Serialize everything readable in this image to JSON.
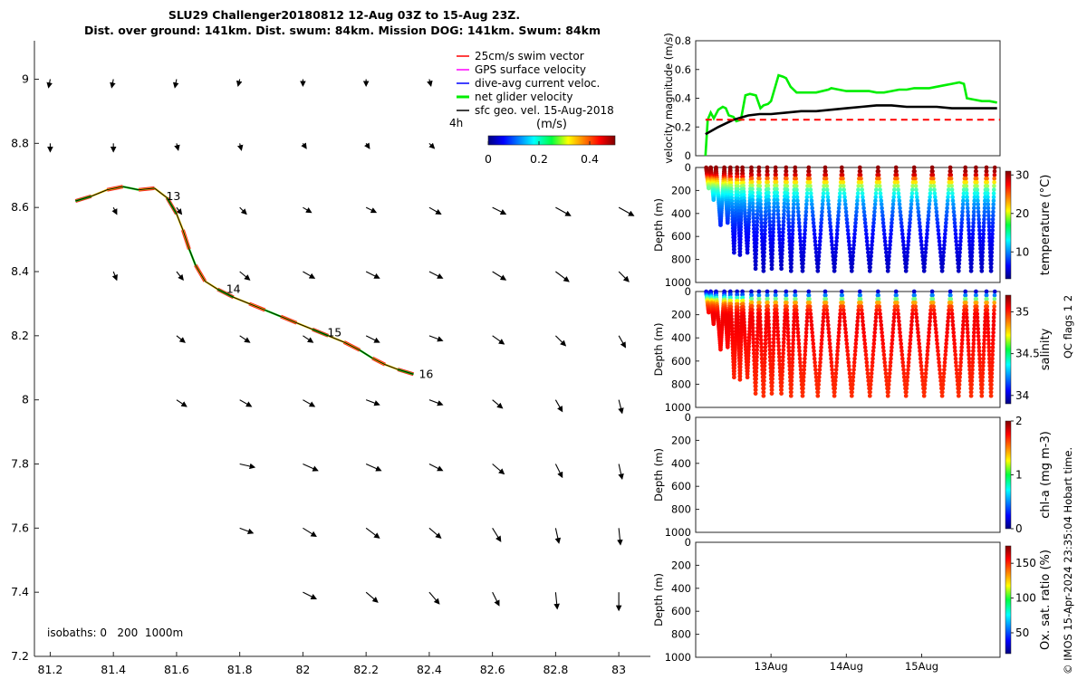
{
  "chart_data": [
    {
      "type": "map",
      "title_line1": "SLU29 Challenger20180812 12-Aug 03Z to 15-Aug 23Z.",
      "title_line2": "Dist. over ground: 141km. Dist. swum: 84km. Mission DOG: 141km. Swum: 84km",
      "xlim": [
        81.15,
        83.1
      ],
      "ylim": [
        7.2,
        9.12
      ],
      "xticks": [
        "81.2",
        "81.4",
        "81.6",
        "81.8",
        "82",
        "82.2",
        "82.4",
        "82.6",
        "82.8",
        "83"
      ],
      "yticks": [
        "7.2",
        "7.4",
        "7.6",
        "7.8",
        "8",
        "8.2",
        "8.4",
        "8.6",
        "8.8",
        "9"
      ],
      "legend": [
        {
          "label": "25cm/s swim vector",
          "color": "#ff0000"
        },
        {
          "label": "GPS surface velocity",
          "color": "#ff00ff"
        },
        {
          "label": "dive-avg current veloc.",
          "color": "#0000ff"
        },
        {
          "label": "net glider velocity",
          "color": "#00ee00"
        },
        {
          "label": "sfc geo. vel. 15-Aug-2018",
          "color": "#000000"
        }
      ],
      "legend_note": "4h",
      "colorbar": {
        "label": "(m/s)",
        "ticks": [
          "0",
          "0.2",
          "0.4"
        ],
        "range": [
          0,
          0.5
        ]
      },
      "isobaths_label": "isobaths: 0   200  1000m",
      "track": [
        [
          81.28,
          8.62
        ],
        [
          81.33,
          8.635
        ],
        [
          81.38,
          8.655
        ],
        [
          81.43,
          8.665
        ],
        [
          81.48,
          8.655
        ],
        [
          81.53,
          8.66
        ],
        [
          81.57,
          8.63
        ],
        [
          81.6,
          8.58
        ],
        [
          81.62,
          8.53
        ],
        [
          81.64,
          8.47
        ],
        [
          81.66,
          8.42
        ],
        [
          81.69,
          8.37
        ],
        [
          81.73,
          8.345
        ],
        [
          81.78,
          8.32
        ],
        [
          81.83,
          8.3
        ],
        [
          81.88,
          8.28
        ],
        [
          81.93,
          8.26
        ],
        [
          81.98,
          8.24
        ],
        [
          82.03,
          8.22
        ],
        [
          82.08,
          8.2
        ],
        [
          82.13,
          8.18
        ],
        [
          82.18,
          8.155
        ],
        [
          82.22,
          8.13
        ],
        [
          82.26,
          8.11
        ],
        [
          82.3,
          8.095
        ],
        [
          82.35,
          8.08
        ]
      ],
      "day_labels": [
        {
          "text": "13",
          "x": 81.55,
          "y": 8.635
        },
        {
          "text": "14",
          "x": 81.74,
          "y": 8.345
        },
        {
          "text": "15",
          "x": 82.06,
          "y": 8.21
        },
        {
          "text": "16",
          "x": 82.35,
          "y": 8.08
        }
      ],
      "current_grid": {
        "lons": [
          81.2,
          81.4,
          81.6,
          81.8,
          82.0,
          82.2,
          82.4,
          82.6,
          82.8,
          83.0
        ],
        "lats": [
          9.0,
          8.8,
          8.6,
          8.4,
          8.2,
          8.0,
          7.8,
          7.6,
          7.4
        ],
        "vectors": [
          {
            "lat": 9.0,
            "u": [
              -0.01,
              -0.01,
              -0.01,
              -0.01,
              0.0,
              0.0,
              0.01,
              null,
              null,
              null
            ],
            "v": [
              -0.05,
              -0.05,
              -0.05,
              -0.04,
              -0.04,
              -0.04,
              -0.04,
              null,
              null,
              null
            ]
          },
          {
            "lat": 8.8,
            "u": [
              0.0,
              0.0,
              0.01,
              0.01,
              0.02,
              0.02,
              0.03,
              null,
              null,
              null
            ],
            "v": [
              -0.05,
              -0.05,
              -0.04,
              -0.04,
              -0.03,
              -0.03,
              -0.03,
              null,
              null,
              null
            ]
          },
          {
            "lat": 8.6,
            "u": [
              null,
              0.02,
              0.03,
              0.04,
              0.05,
              0.06,
              0.07,
              0.08,
              0.09,
              0.09
            ],
            "v": [
              null,
              -0.04,
              -0.04,
              -0.04,
              -0.03,
              -0.03,
              -0.04,
              -0.04,
              -0.05,
              -0.05
            ]
          },
          {
            "lat": 8.4,
            "u": [
              null,
              0.02,
              0.04,
              0.06,
              0.07,
              0.08,
              0.08,
              0.08,
              0.08,
              0.06
            ],
            "v": [
              null,
              -0.05,
              -0.05,
              -0.05,
              -0.04,
              -0.04,
              -0.04,
              -0.05,
              -0.06,
              -0.06
            ]
          },
          {
            "lat": 8.2,
            "u": [
              null,
              null,
              0.05,
              0.06,
              0.06,
              0.08,
              0.08,
              0.07,
              0.06,
              0.04
            ],
            "v": [
              null,
              null,
              -0.04,
              -0.04,
              -0.04,
              -0.04,
              -0.03,
              -0.05,
              -0.06,
              -0.07
            ]
          },
          {
            "lat": 8.0,
            "u": [
              null,
              null,
              0.06,
              0.07,
              0.07,
              0.08,
              0.08,
              0.06,
              0.04,
              0.02
            ],
            "v": [
              null,
              null,
              -0.04,
              -0.04,
              -0.04,
              -0.03,
              -0.03,
              -0.05,
              -0.07,
              -0.08
            ]
          },
          {
            "lat": 7.8,
            "u": [
              null,
              null,
              null,
              0.09,
              0.09,
              0.09,
              0.08,
              0.07,
              0.04,
              0.02
            ],
            "v": [
              null,
              null,
              null,
              -0.02,
              -0.04,
              -0.04,
              -0.04,
              -0.06,
              -0.08,
              -0.09
            ]
          },
          {
            "lat": 7.6,
            "u": [
              null,
              null,
              null,
              0.08,
              0.08,
              0.08,
              0.07,
              0.05,
              0.02,
              0.01
            ],
            "v": [
              null,
              null,
              null,
              -0.03,
              -0.05,
              -0.06,
              -0.06,
              -0.08,
              -0.09,
              -0.1
            ]
          },
          {
            "lat": 7.4,
            "u": [
              null,
              null,
              null,
              null,
              0.08,
              0.07,
              0.06,
              0.04,
              0.01,
              0.0
            ],
            "v": [
              null,
              null,
              null,
              null,
              -0.04,
              -0.06,
              -0.07,
              -0.08,
              -0.1,
              -0.11
            ]
          }
        ]
      }
    },
    {
      "type": "line",
      "ylabel": "velocity magnitude (m/s)",
      "ylim": [
        0,
        0.8
      ],
      "yticks": [
        "0",
        "0.2",
        "0.4",
        "0.6",
        "0.8"
      ],
      "x_unit": "days from 12-Aug 00Z",
      "xlim": [
        0,
        4.04
      ],
      "series": [
        {
          "color": "#00ee00",
          "x": [
            0.13,
            0.16,
            0.2,
            0.24,
            0.3,
            0.36,
            0.4,
            0.44,
            0.5,
            0.54,
            0.6,
            0.66,
            0.72,
            0.8,
            0.86,
            0.9,
            0.96,
            1.0,
            1.1,
            1.16,
            1.2,
            1.26,
            1.34,
            1.4,
            1.46,
            1.6,
            1.76,
            1.8,
            1.9,
            2.0,
            2.1,
            2.2,
            2.3,
            2.4,
            2.5,
            2.6,
            2.7,
            2.8,
            2.9,
            3.0,
            3.1,
            3.2,
            3.3,
            3.4,
            3.5,
            3.56,
            3.6,
            3.7,
            3.8,
            3.9,
            4.0
          ],
          "y": [
            0.0,
            0.25,
            0.3,
            0.26,
            0.32,
            0.34,
            0.33,
            0.28,
            0.27,
            0.24,
            0.25,
            0.42,
            0.43,
            0.42,
            0.33,
            0.35,
            0.36,
            0.38,
            0.56,
            0.55,
            0.54,
            0.48,
            0.44,
            0.44,
            0.44,
            0.44,
            0.46,
            0.47,
            0.46,
            0.45,
            0.45,
            0.45,
            0.45,
            0.44,
            0.44,
            0.45,
            0.46,
            0.46,
            0.47,
            0.47,
            0.47,
            0.48,
            0.49,
            0.5,
            0.51,
            0.5,
            0.4,
            0.39,
            0.38,
            0.38,
            0.37
          ]
        },
        {
          "color": "#000000",
          "x": [
            0.13,
            0.3,
            0.5,
            0.7,
            0.85,
            1.0,
            1.2,
            1.4,
            1.6,
            1.8,
            2.0,
            2.2,
            2.4,
            2.6,
            2.8,
            3.0,
            3.2,
            3.4,
            3.6,
            3.8,
            4.0
          ],
          "y": [
            0.15,
            0.2,
            0.25,
            0.28,
            0.29,
            0.29,
            0.3,
            0.31,
            0.31,
            0.32,
            0.33,
            0.34,
            0.35,
            0.35,
            0.34,
            0.34,
            0.34,
            0.33,
            0.33,
            0.33,
            0.33
          ]
        },
        {
          "color": "#ff0000",
          "dashed": true,
          "x": [
            0.13,
            4.04
          ],
          "y": [
            0.25,
            0.25
          ]
        }
      ]
    },
    {
      "type": "scatter",
      "variable": "temperature",
      "cbar_label": "temperature (°C)",
      "crange": [
        3,
        31
      ],
      "cticks": [
        "10",
        "20",
        "30"
      ],
      "ylim": [
        1000,
        0
      ],
      "yticks": [
        "0",
        "200",
        "400",
        "600",
        "800",
        "1000"
      ],
      "ylabel": "Depth (m)",
      "yo_times": [
        0.14,
        0.2,
        0.27,
        0.38,
        0.46,
        0.55,
        0.62,
        0.74,
        0.84,
        0.95,
        1.06,
        1.2,
        1.32,
        1.5,
        1.72,
        1.94,
        2.18,
        2.42,
        2.66,
        2.9,
        3.14,
        3.38,
        3.58,
        3.72,
        3.86,
        3.97
      ],
      "max_depths": [
        180,
        280,
        500,
        480,
        740,
        760,
        740,
        880,
        900,
        880,
        880,
        900,
        900,
        900,
        900,
        900,
        900,
        900,
        900,
        900,
        900,
        900,
        900,
        900,
        900,
        500
      ],
      "profile": [
        [
          0,
          30.5
        ],
        [
          30,
          30
        ],
        [
          60,
          29
        ],
        [
          80,
          27
        ],
        [
          100,
          24
        ],
        [
          130,
          21
        ],
        [
          160,
          18
        ],
        [
          200,
          15
        ],
        [
          250,
          13
        ],
        [
          300,
          11
        ],
        [
          400,
          9
        ],
        [
          500,
          7.5
        ],
        [
          600,
          6.5
        ],
        [
          700,
          5.8
        ],
        [
          800,
          5.2
        ],
        [
          900,
          4.8
        ],
        [
          1000,
          4.5
        ]
      ]
    },
    {
      "type": "scatter",
      "variable": "salinity",
      "cbar_label": "salinity",
      "cbar_sublabel": "QC flags 1  2",
      "crange": [
        33.9,
        35.2
      ],
      "cticks": [
        "34",
        "34.5",
        "35"
      ],
      "ylim": [
        1000,
        0
      ],
      "yticks": [
        "0",
        "200",
        "400",
        "600",
        "800",
        "1000"
      ],
      "ylabel": "Depth (m)",
      "profile": [
        [
          0,
          34.0
        ],
        [
          20,
          34.1
        ],
        [
          40,
          34.3
        ],
        [
          60,
          34.5
        ],
        [
          80,
          34.7
        ],
        [
          100,
          34.85
        ],
        [
          130,
          34.95
        ],
        [
          160,
          35.0
        ],
        [
          200,
          35.05
        ],
        [
          300,
          35.05
        ],
        [
          500,
          35.02
        ],
        [
          700,
          35.0
        ],
        [
          900,
          34.98
        ]
      ]
    },
    {
      "type": "scatter",
      "variable": "chl-a",
      "cbar_label": "chl-a (mg m-3)",
      "crange": [
        0,
        2
      ],
      "cticks": [
        "0",
        "1",
        "2"
      ],
      "ylim": [
        1000,
        0
      ],
      "yticks": [
        "0",
        "200",
        "400",
        "600",
        "800",
        "1000"
      ],
      "ylabel": "Depth (m)"
    },
    {
      "type": "scatter",
      "variable": "oxygen",
      "cbar_label": "Ox. sat. ratio (%)",
      "crange": [
        20,
        175
      ],
      "cticks": [
        "50",
        "100",
        "150"
      ],
      "ylim": [
        1000,
        0
      ],
      "yticks": [
        "0",
        "200",
        "400",
        "600",
        "800",
        "1000"
      ],
      "ylabel": "Depth (m)",
      "xticks": [
        {
          "label": "13Aug",
          "t": 1.0
        },
        {
          "label": "14Aug",
          "t": 2.0
        },
        {
          "label": "15Aug",
          "t": 3.0
        }
      ]
    }
  ],
  "footer": "© IMOS 15-Apr-2024 23:35:04 Hobart time.",
  "colors": {
    "track_green": "#00ee00",
    "swim_red": "#ff0000",
    "axis": "#262626"
  }
}
